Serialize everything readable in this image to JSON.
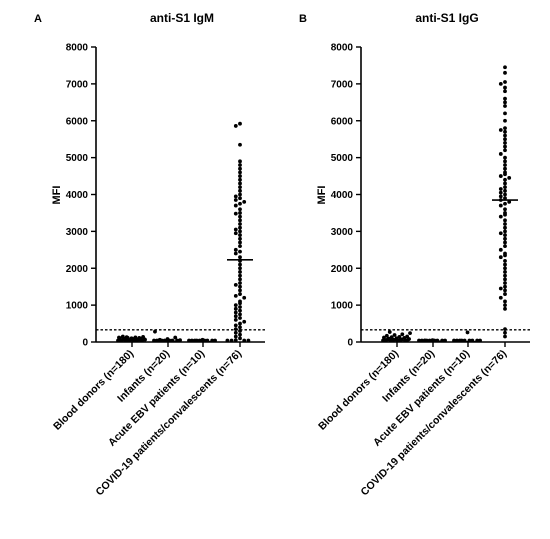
{
  "chart_data": [
    {
      "type": "scatter",
      "panel_label": "A",
      "title": "anti-S1 IgM",
      "ylabel": "MFI",
      "xlabel": "",
      "ylim": [
        0,
        8000
      ],
      "yticks": [
        0,
        1000,
        2000,
        3000,
        4000,
        5000,
        6000,
        7000,
        8000
      ],
      "categories": [
        "Blood donors (n=180)",
        "Infants (n=20)",
        "Acute EBV patients (n=10)",
        "COVID-19 patients/convalescents (n=76)"
      ],
      "cutoff": 330,
      "medians": [
        40,
        20,
        10,
        2230
      ],
      "series": [
        {
          "values": [
            10,
            20,
            30,
            40,
            50,
            60,
            70,
            80,
            90,
            100,
            110,
            120,
            130,
            15,
            25,
            35,
            45,
            55,
            65,
            75,
            85,
            95,
            105,
            115,
            125,
            140,
            150
          ]
        },
        {
          "values": [
            5,
            10,
            15,
            20,
            25,
            30,
            40,
            50,
            60,
            80,
            120,
            280
          ]
        },
        {
          "values": [
            5,
            8,
            10,
            12,
            15,
            18,
            20,
            30,
            40,
            60
          ]
        },
        {
          "values": [
            5920,
            5860,
            5350,
            4900,
            4800,
            4700,
            4600,
            4500,
            4400,
            4300,
            4200,
            4100,
            4000,
            3950,
            3900,
            3850,
            3800,
            3750,
            3700,
            3600,
            3500,
            3480,
            3400,
            3300,
            3200,
            3100,
            3050,
            3000,
            2950,
            2900,
            2800,
            2700,
            2600,
            2500,
            2450,
            2400,
            2300,
            2200,
            2100,
            2000,
            1900,
            1800,
            1700,
            1600,
            1550,
            1500,
            1400,
            1300,
            1250,
            1200,
            1100,
            1050,
            1000,
            950,
            900,
            850,
            800,
            750,
            700,
            650,
            600,
            550,
            500,
            450,
            400,
            350,
            300,
            250,
            200,
            150,
            100,
            50,
            30,
            20,
            10,
            5
          ]
        }
      ]
    },
    {
      "type": "scatter",
      "panel_label": "B",
      "title": "anti-S1 IgG",
      "ylabel": "MFI",
      "xlabel": "",
      "ylim": [
        0,
        8000
      ],
      "yticks": [
        0,
        1000,
        2000,
        3000,
        4000,
        5000,
        6000,
        7000,
        8000
      ],
      "categories": [
        "Blood donors (n=180)",
        "Infants (n=20)",
        "Acute EBV patients (n=10)",
        "COVID-19 patients/convalescents (n=76)"
      ],
      "cutoff": 330,
      "medians": [
        40,
        20,
        10,
        3850
      ],
      "series": [
        {
          "values": [
            10,
            20,
            30,
            40,
            50,
            60,
            70,
            80,
            90,
            100,
            110,
            120,
            130,
            140,
            150,
            170,
            190,
            210,
            240,
            270,
            15,
            25,
            35,
            45,
            55,
            65,
            75
          ]
        },
        {
          "values": [
            5,
            10,
            15,
            20,
            25,
            30,
            35,
            40,
            45,
            50
          ]
        },
        {
          "values": [
            5,
            8,
            10,
            12,
            15,
            18,
            20,
            25,
            30,
            260
          ]
        },
        {
          "values": [
            7450,
            7300,
            7050,
            7000,
            6900,
            6800,
            6600,
            6500,
            6400,
            6200,
            6000,
            5800,
            5750,
            5700,
            5600,
            5500,
            5400,
            5300,
            5200,
            5100,
            5000,
            4900,
            4800,
            4700,
            4600,
            4550,
            4500,
            4450,
            4400,
            4300,
            4200,
            4150,
            4100,
            4050,
            4000,
            3950,
            3900,
            3850,
            3800,
            3750,
            3700,
            3600,
            3500,
            3450,
            3400,
            3300,
            3200,
            3100,
            3000,
            2950,
            2900,
            2800,
            2700,
            2600,
            2500,
            2400,
            2350,
            2300,
            2200,
            2100,
            2000,
            1900,
            1800,
            1700,
            1600,
            1500,
            1450,
            1400,
            1300,
            1200,
            1100,
            1000,
            900,
            350,
            250,
            150
          ]
        }
      ]
    }
  ]
}
